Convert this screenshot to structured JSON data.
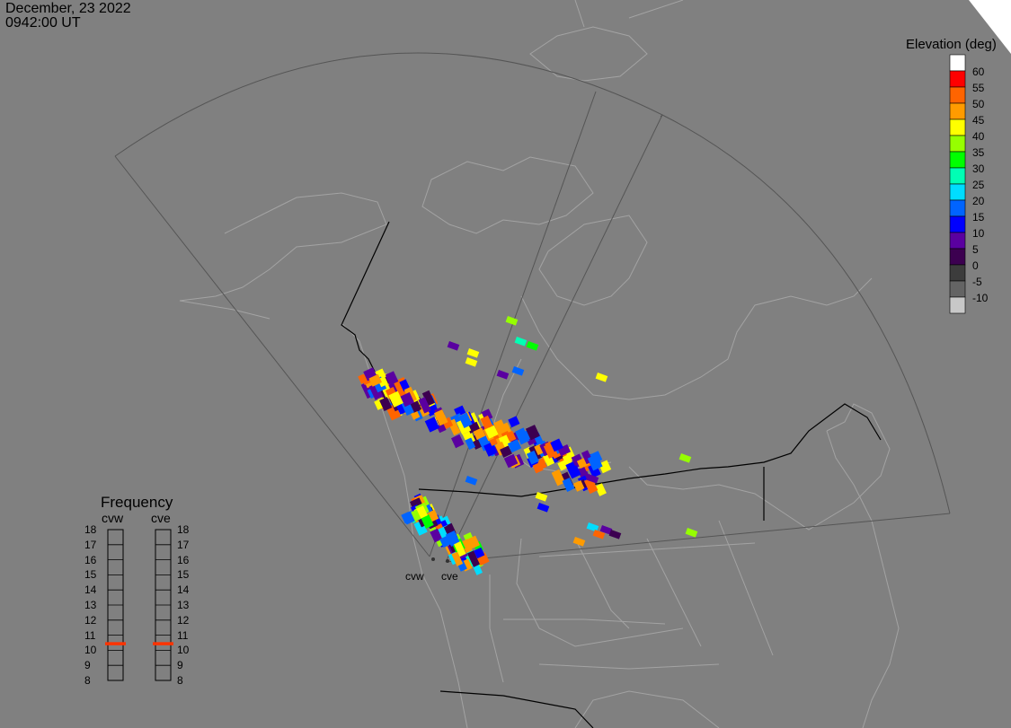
{
  "header": {
    "date": "December, 23 2022",
    "time": "0942:00 UT"
  },
  "elevation_scale": {
    "title": "Elevation (deg)",
    "levels": [
      {
        "label": "60",
        "color": "#ffffff"
      },
      {
        "label": "55",
        "color": "#ff0000"
      },
      {
        "label": "50",
        "color": "#ff6400"
      },
      {
        "label": "45",
        "color": "#ff9b00"
      },
      {
        "label": "40",
        "color": "#ffff00"
      },
      {
        "label": "35",
        "color": "#96ff00"
      },
      {
        "label": "30",
        "color": "#00ff00"
      },
      {
        "label": "25",
        "color": "#00ffb4"
      },
      {
        "label": "20",
        "color": "#00ddff"
      },
      {
        "label": "15",
        "color": "#0064ff"
      },
      {
        "label": "10",
        "color": "#0000ff"
      },
      {
        "label": "5",
        "color": "#5a00a0"
      },
      {
        "label": "0",
        "color": "#3c0050"
      },
      {
        "label": "-5",
        "color": "#3c3c3c"
      },
      {
        "label": "-10",
        "color": "#646464"
      },
      {
        "label": "",
        "color": "#c8c8c8"
      }
    ]
  },
  "frequency_panel": {
    "title": "Frequency",
    "radars": [
      {
        "name": "cvw",
        "current_mhz": 11
      },
      {
        "name": "cve",
        "current_mhz": 11
      }
    ],
    "ticks": [
      "18",
      "17",
      "16",
      "15",
      "14",
      "13",
      "12",
      "11",
      "10",
      "9",
      "8"
    ],
    "marker_color": "#ff3300"
  },
  "radar_sites": [
    "cvw",
    "cve"
  ],
  "colors": {
    "background": "#808080",
    "coastline": "#a0a0a0",
    "border": "#000000",
    "fov": "#555555"
  }
}
